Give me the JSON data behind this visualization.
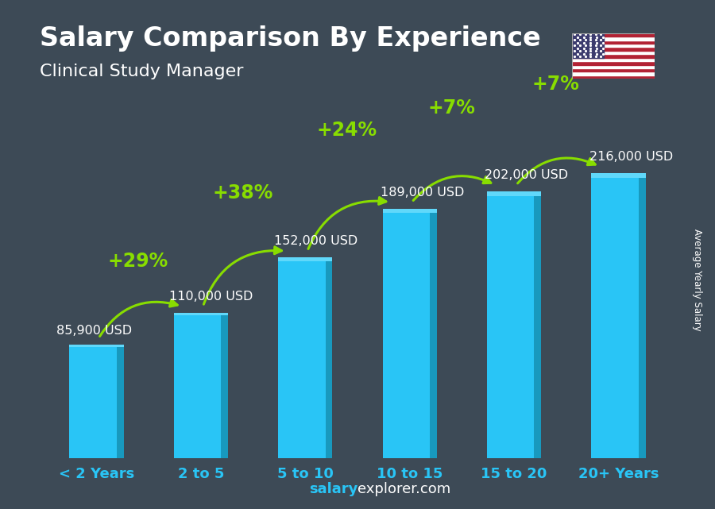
{
  "title": "Salary Comparison By Experience",
  "subtitle": "Clinical Study Manager",
  "categories": [
    "< 2 Years",
    "2 to 5",
    "5 to 10",
    "10 to 15",
    "15 to 20",
    "20+ Years"
  ],
  "values": [
    85900,
    110000,
    152000,
    189000,
    202000,
    216000
  ],
  "salary_labels": [
    "85,900 USD",
    "110,000 USD",
    "152,000 USD",
    "189,000 USD",
    "202,000 USD",
    "216,000 USD"
  ],
  "pct_changes": [
    null,
    "+29%",
    "+38%",
    "+24%",
    "+7%",
    "+7%"
  ],
  "bar_color_face": "#29c5f6",
  "bar_color_dark": "#1899be",
  "bar_color_top": "#60d8fa",
  "background_color": "#3d4a56",
  "title_color": "#ffffff",
  "subtitle_color": "#ffffff",
  "label_color": "#ffffff",
  "tick_color": "#29c5f6",
  "pct_color": "#88dd00",
  "arrow_color": "#88dd00",
  "footer_salary": "salary",
  "footer_rest": "explorer.com",
  "footer_color_salary": "#29c5f6",
  "footer_color_rest": "#ffffff",
  "ylabel": "Average Yearly Salary",
  "ylim": [
    0,
    270000
  ],
  "title_fontsize": 24,
  "subtitle_fontsize": 16,
  "tick_fontsize": 13,
  "label_fontsize": 11.5,
  "pct_fontsize": 17,
  "bar_width": 0.52
}
